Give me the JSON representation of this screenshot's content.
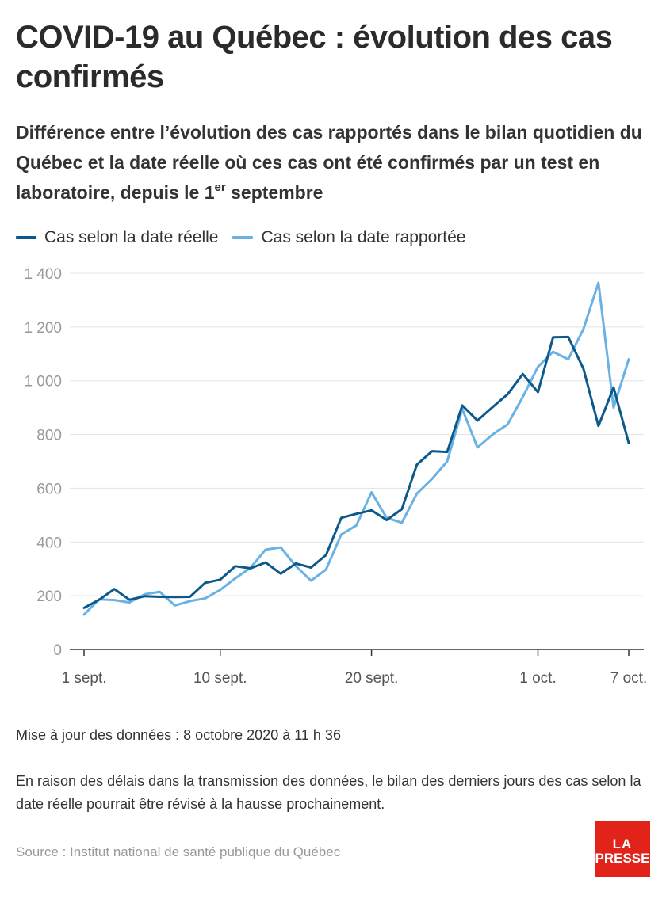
{
  "header": {
    "title": "COVID-19 au Québec : évolution des cas confirmés",
    "subtitle_before": "Différence entre l’évolution des cas rapportés dans le bilan quotidien du Québec et la date réelle où ces cas ont été confirmés par un test en laboratoire, depuis le 1",
    "subtitle_sup": "er",
    "subtitle_after": " septembre"
  },
  "colors": {
    "reelle": "#0d5a8a",
    "rapportee": "#6ab1e4",
    "grid": "#e3e3e3",
    "axis": "#333333",
    "brand": "#e2231a"
  },
  "chart_data": {
    "type": "line",
    "x": [
      "2020-09-01",
      "2020-09-02",
      "2020-09-03",
      "2020-09-04",
      "2020-09-05",
      "2020-09-06",
      "2020-09-07",
      "2020-09-08",
      "2020-09-09",
      "2020-09-10",
      "2020-09-11",
      "2020-09-12",
      "2020-09-13",
      "2020-09-14",
      "2020-09-15",
      "2020-09-16",
      "2020-09-17",
      "2020-09-18",
      "2020-09-19",
      "2020-09-20",
      "2020-09-21",
      "2020-09-22",
      "2020-09-23",
      "2020-09-24",
      "2020-09-25",
      "2020-09-26",
      "2020-09-27",
      "2020-09-28",
      "2020-09-29",
      "2020-09-30",
      "2020-10-01",
      "2020-10-02",
      "2020-10-03",
      "2020-10-04",
      "2020-10-05",
      "2020-10-06",
      "2020-10-07"
    ],
    "series": [
      {
        "name": "Cas selon la date réelle",
        "color_key": "reelle",
        "values": [
          155,
          185,
          225,
          185,
          198,
          196,
          195,
          196,
          248,
          260,
          310,
          302,
          324,
          282,
          320,
          305,
          352,
          490,
          505,
          518,
          482,
          522,
          688,
          738,
          735,
          908,
          852,
          902,
          950,
          1025,
          958,
          1162,
          1163,
          1045,
          832,
          975,
          768
        ]
      },
      {
        "name": "Cas selon la date rapportée",
        "color_key": "rapportee",
        "values": [
          130,
          187,
          184,
          175,
          205,
          215,
          164,
          180,
          190,
          222,
          265,
          304,
          372,
          380,
          310,
          256,
          298,
          428,
          462,
          585,
          490,
          472,
          580,
          635,
          700,
          895,
          752,
          800,
          838,
          940,
          1052,
          1108,
          1080,
          1192,
          1365,
          900,
          1080
        ]
      }
    ],
    "ylim": [
      0,
      1400
    ],
    "yticks": [
      0,
      200,
      400,
      600,
      800,
      1000,
      1200,
      1400
    ],
    "ytick_labels": [
      "0",
      "200",
      "400",
      "600",
      "800",
      "1 000",
      "1 200",
      "1 400"
    ],
    "xticks": [
      {
        "x": "2020-09-01",
        "label": "1 sept."
      },
      {
        "x": "2020-09-10",
        "label": "10 sept."
      },
      {
        "x": "2020-09-20",
        "label": "20 sept."
      },
      {
        "x": "2020-10-01",
        "label": "1 oct."
      },
      {
        "x": "2020-10-07",
        "label": "7 oct."
      }
    ],
    "grid": true,
    "legend": "top-left"
  },
  "footer": {
    "update": "Mise à jour des données : 8 octobre 2020 à 11 h 36",
    "note": "En raison des délais dans la transmission des données, le bilan des derniers jours des cas selon la date réelle pourrait être révisé à la hausse prochainement.",
    "source": "Source : Institut national de santé publique du Québec",
    "logo_line1": "LA",
    "logo_line2": "PRESSE"
  }
}
